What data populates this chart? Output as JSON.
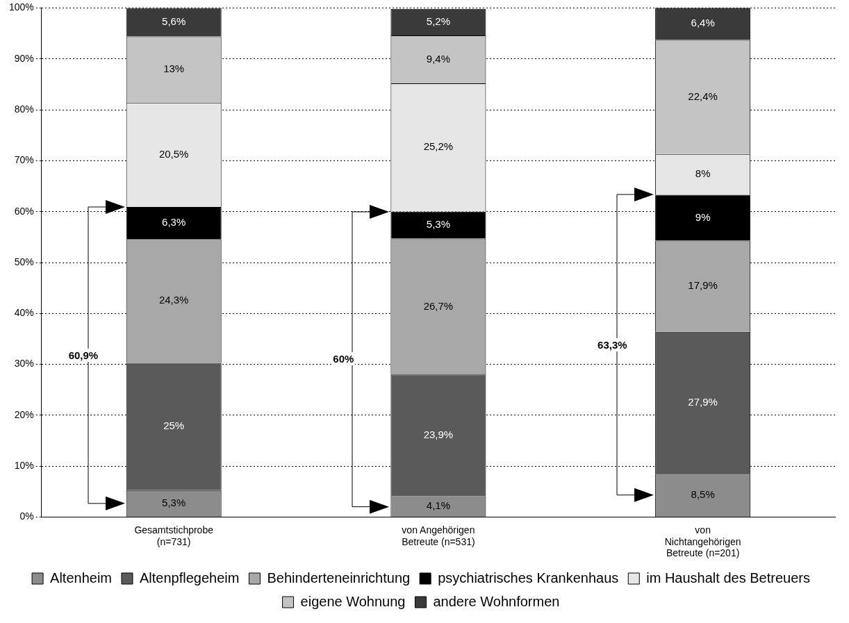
{
  "chart_data": {
    "type": "bar",
    "stacked": true,
    "categories": [
      "Gesamtstichprobe\n(n=731)",
      "von Angehörigen\nBetreute (n=531)",
      "von\nNichtangehörigen\nBetreute (n=201)"
    ],
    "series": [
      {
        "name": "Altenheim",
        "color": "#8c8c8c",
        "values": [
          5.3,
          4.1,
          8.5
        ],
        "value_labels": [
          "5,3%",
          "4,1%",
          "8,5%"
        ]
      },
      {
        "name": "Altenpflegeheim",
        "color": "#5a5a5a",
        "values": [
          25,
          23.9,
          27.9
        ],
        "value_labels": [
          "25%",
          "23,9%",
          "27,9%"
        ]
      },
      {
        "name": "Behinderteneinrichtung",
        "color": "#a8a8a8",
        "values": [
          24.3,
          26.7,
          17.9
        ],
        "value_labels": [
          "24,3%",
          "26,7%",
          "17,9%"
        ]
      },
      {
        "name": "psychiatrisches Krankenhaus",
        "color": "#000000",
        "values": [
          6.3,
          5.3,
          9
        ],
        "value_labels": [
          "6,3%",
          "5,3%",
          "9%"
        ]
      },
      {
        "name": "im Haushalt des Betreuers",
        "color": "#e6e6e6",
        "values": [
          20.5,
          25.2,
          8
        ],
        "value_labels": [
          "20,5%",
          "25,2%",
          "8%"
        ]
      },
      {
        "name": "eigene Wohnung",
        "color": "#c4c4c4",
        "values": [
          13,
          9.4,
          22.4
        ],
        "value_labels": [
          "13%",
          "9,4%",
          "22,4%"
        ]
      },
      {
        "name": "andere Wohnformen",
        "color": "#3a3a3a",
        "values": [
          5.6,
          5.2,
          6.4
        ],
        "value_labels": [
          "5,6%",
          "5,2%",
          "6,4%"
        ]
      }
    ],
    "ylim": [
      0,
      100
    ],
    "yticks": [
      {
        "value": 0,
        "label": "0%"
      },
      {
        "value": 10,
        "label": "10%"
      },
      {
        "value": 20,
        "label": "20%"
      },
      {
        "value": 30,
        "label": "30%"
      },
      {
        "value": 40,
        "label": "40%"
      },
      {
        "value": 50,
        "label": "50%"
      },
      {
        "value": 60,
        "label": "60%"
      },
      {
        "value": 70,
        "label": "70%"
      },
      {
        "value": 80,
        "label": "80%"
      },
      {
        "value": 90,
        "label": "90%"
      },
      {
        "value": 100,
        "label": "100%"
      }
    ],
    "grid": "y",
    "legend": "bottom",
    "annotations": [
      "60,9%",
      "60%",
      "63,3%"
    ]
  }
}
